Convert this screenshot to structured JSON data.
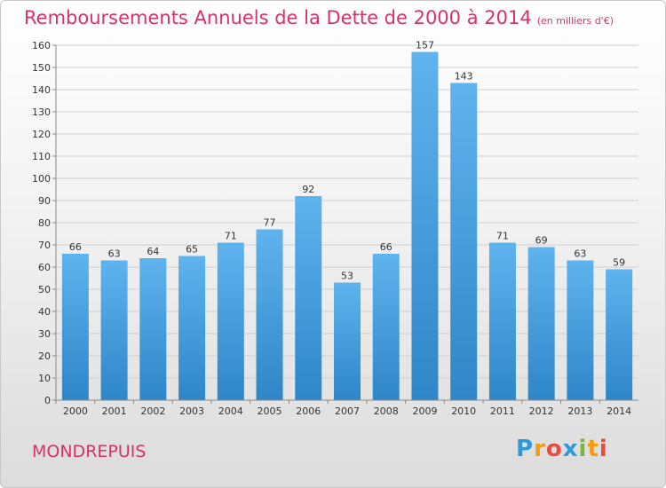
{
  "title": "Remboursements Annuels de la Dette de 2000 à 2014",
  "unit": "(en milliers d'€)",
  "commune": "MONDREPUIS",
  "logo": "Proxiti",
  "colors": {
    "bar": "#4ea6e6",
    "bar_dark": "#2f86c8",
    "title": "#d6336c"
  },
  "chart_data": {
    "type": "bar",
    "title": "Remboursements Annuels de la Dette de 2000 à 2014",
    "ylabel": "",
    "xlabel": "",
    "ylim": [
      0,
      160
    ],
    "yticks": [
      0,
      10,
      20,
      30,
      40,
      50,
      60,
      70,
      80,
      90,
      100,
      110,
      120,
      130,
      140,
      150,
      160
    ],
    "grid": true,
    "categories": [
      "2000",
      "2001",
      "2002",
      "2003",
      "2004",
      "2005",
      "2006",
      "2007",
      "2008",
      "2009",
      "2010",
      "2011",
      "2012",
      "2013",
      "2014"
    ],
    "values": [
      66,
      63,
      64,
      65,
      71,
      77,
      92,
      53,
      66,
      157,
      143,
      71,
      69,
      63,
      59
    ]
  }
}
